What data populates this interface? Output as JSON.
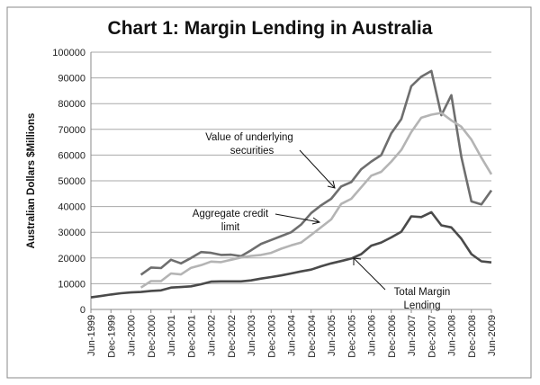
{
  "chart_data": {
    "type": "line",
    "title": "Chart 1: Margin Lending in Australia",
    "xlabel": "",
    "ylabel": "Australian Dollars $Millions",
    "ylim": [
      0,
      100000
    ],
    "yticks": [
      "0",
      "10000",
      "20000",
      "30000",
      "40000",
      "50000",
      "60000",
      "70000",
      "80000",
      "90000",
      "100000"
    ],
    "ytick_values": [
      0,
      10000,
      20000,
      30000,
      40000,
      50000,
      60000,
      70000,
      80000,
      90000,
      100000
    ],
    "xtick_labels": [
      "Jun-1999",
      "Dec-1999",
      "Jun-2000",
      "Dec-2000",
      "Jun-2001",
      "Dec-2001",
      "Jun-2002",
      "Dec-2002",
      "Jun-2003",
      "Dec-2003",
      "Jun-2004",
      "Dec-2004",
      "Jun-2005",
      "Dec-2005",
      "Jun-2006",
      "Dec-2006",
      "Jun-2007",
      "Dec-2007",
      "Jun-2008",
      "Dec-2008",
      "Jun-2009"
    ],
    "x_frequency": "quarterly, Jun-1999 to Jun-2009",
    "grid": "horizontal",
    "legend": "none (inline annotations)",
    "series": [
      {
        "name": "Total Margin Lending",
        "color": "#4a4a4a",
        "start_index": 0,
        "values": [
          4700,
          5200,
          5800,
          6300,
          6600,
          6800,
          7200,
          7400,
          8500,
          8700,
          9000,
          9800,
          10800,
          10900,
          10900,
          10900,
          11300,
          12000,
          12600,
          13200,
          14000,
          14800,
          15500,
          16800,
          17900,
          18800,
          19800,
          21500,
          24800,
          26000,
          28000,
          30200,
          36200,
          35900,
          37800,
          32700,
          31900,
          27500,
          21500,
          18700,
          18300
        ]
      },
      {
        "name": "Value of underlying securities",
        "color": "#6e6e6e",
        "start_index": 5,
        "values": [
          13500,
          16300,
          16100,
          19300,
          17900,
          20000,
          22300,
          22000,
          21200,
          21300,
          20700,
          23000,
          25500,
          27000,
          28500,
          30000,
          33000,
          37500,
          40500,
          43000,
          47800,
          49500,
          54500,
          57500,
          60000,
          68500,
          74000,
          86800,
          90500,
          92700,
          75500,
          83300,
          59300,
          42000,
          40800,
          46300
        ]
      },
      {
        "name": "Aggregate credit limit",
        "color": "#b4b4b4",
        "start_index": 5,
        "values": [
          8500,
          11000,
          11000,
          14000,
          13600,
          16200,
          17200,
          18600,
          18400,
          19300,
          20200,
          20800,
          21200,
          22000,
          23600,
          24900,
          26000,
          29000,
          32000,
          35000,
          41000,
          43000,
          47500,
          52000,
          53500,
          57500,
          62000,
          69000,
          74500,
          75700,
          76400,
          73500,
          71000,
          66000,
          59000,
          52500
        ]
      }
    ],
    "annotations": {
      "value": [
        "Value of underlying",
        "securities"
      ],
      "credit": [
        "Aggregate credit",
        "limit"
      ],
      "total": [
        "Total Margin",
        "Lending"
      ]
    }
  }
}
